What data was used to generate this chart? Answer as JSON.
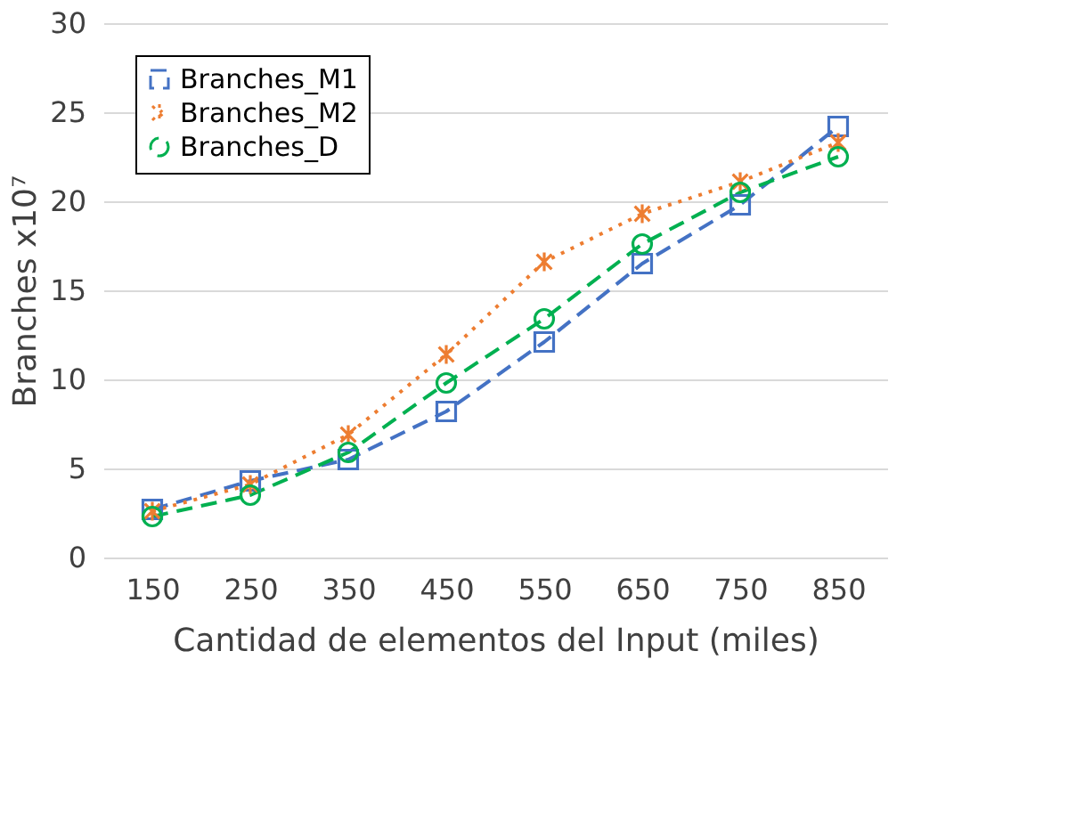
{
  "chart_data": {
    "type": "line",
    "xlabel": "Cantidad de elementos del Input (miles)",
    "ylabel": "Branches x10⁷",
    "categories": [
      "150",
      "250",
      "350",
      "450",
      "550",
      "650",
      "750",
      "850"
    ],
    "series": [
      {
        "name": "Branches_M1",
        "color": "#4472c4",
        "marker": "square",
        "line_style": "dashed",
        "values": [
          2.7,
          4.3,
          5.5,
          8.2,
          12.1,
          16.5,
          19.8,
          24.2
        ]
      },
      {
        "name": "Branches_M2",
        "color": "#ed7d31",
        "marker": "cross",
        "line_style": "dotted",
        "values": [
          2.6,
          4.1,
          6.9,
          11.4,
          16.6,
          19.3,
          21.1,
          23.3
        ]
      },
      {
        "name": "Branches_D",
        "color": "#00b050",
        "marker": "circle",
        "line_style": "dashed",
        "values": [
          2.3,
          3.5,
          5.9,
          9.8,
          13.4,
          17.6,
          20.5,
          22.5
        ]
      }
    ],
    "ylim": [
      0,
      30
    ],
    "yticks": [
      0,
      5,
      10,
      15,
      20,
      25,
      30
    ],
    "grid": "y",
    "legend": "top left"
  }
}
